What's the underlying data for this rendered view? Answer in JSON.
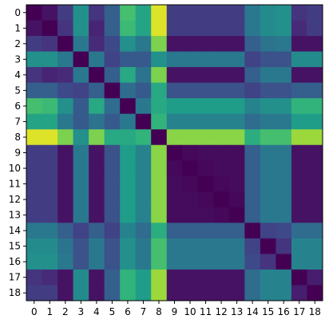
{
  "chart_data": {
    "type": "heatmap",
    "title": "",
    "xlabel": "",
    "ylabel": "",
    "colormap": "viridis",
    "x_categories": [
      "0",
      "1",
      "2",
      "3",
      "4",
      "5",
      "6",
      "7",
      "8",
      "9",
      "10",
      "11",
      "12",
      "13",
      "14",
      "15",
      "16",
      "17",
      "18"
    ],
    "y_categories": [
      "0",
      "1",
      "2",
      "3",
      "4",
      "5",
      "6",
      "7",
      "8",
      "9",
      "10",
      "11",
      "12",
      "13",
      "14",
      "15",
      "16",
      "17",
      "18"
    ],
    "value_range": [
      0,
      1
    ],
    "matrix": [
      [
        0.0,
        0.05,
        0.18,
        0.5,
        0.15,
        0.3,
        0.7,
        0.58,
        0.95,
        0.18,
        0.18,
        0.18,
        0.18,
        0.18,
        0.4,
        0.48,
        0.5,
        0.15,
        0.18
      ],
      [
        0.05,
        0.0,
        0.15,
        0.5,
        0.1,
        0.3,
        0.68,
        0.58,
        0.95,
        0.18,
        0.18,
        0.18,
        0.18,
        0.18,
        0.4,
        0.48,
        0.5,
        0.12,
        0.18
      ],
      [
        0.18,
        0.15,
        0.0,
        0.4,
        0.12,
        0.22,
        0.5,
        0.4,
        0.8,
        0.05,
        0.05,
        0.05,
        0.05,
        0.05,
        0.3,
        0.38,
        0.4,
        0.05,
        0.05
      ],
      [
        0.5,
        0.5,
        0.4,
        0.0,
        0.4,
        0.2,
        0.28,
        0.28,
        0.5,
        0.4,
        0.4,
        0.4,
        0.4,
        0.4,
        0.2,
        0.25,
        0.25,
        0.48,
        0.48
      ],
      [
        0.15,
        0.1,
        0.12,
        0.4,
        0.0,
        0.3,
        0.6,
        0.38,
        0.8,
        0.05,
        0.05,
        0.05,
        0.05,
        0.05,
        0.3,
        0.4,
        0.4,
        0.05,
        0.05
      ],
      [
        0.3,
        0.3,
        0.22,
        0.2,
        0.3,
        0.0,
        0.35,
        0.28,
        0.6,
        0.25,
        0.25,
        0.25,
        0.25,
        0.25,
        0.2,
        0.25,
        0.25,
        0.3,
        0.3
      ],
      [
        0.7,
        0.68,
        0.5,
        0.28,
        0.6,
        0.35,
        0.0,
        0.4,
        0.6,
        0.55,
        0.55,
        0.55,
        0.55,
        0.55,
        0.45,
        0.5,
        0.5,
        0.65,
        0.65
      ],
      [
        0.58,
        0.58,
        0.4,
        0.28,
        0.38,
        0.28,
        0.4,
        0.0,
        0.65,
        0.45,
        0.45,
        0.45,
        0.45,
        0.45,
        0.35,
        0.4,
        0.4,
        0.55,
        0.55
      ],
      [
        0.95,
        0.95,
        0.8,
        0.5,
        0.8,
        0.6,
        0.6,
        0.65,
        0.0,
        0.82,
        0.82,
        0.82,
        0.82,
        0.82,
        0.62,
        0.7,
        0.7,
        0.85,
        0.85
      ],
      [
        0.18,
        0.18,
        0.05,
        0.4,
        0.05,
        0.25,
        0.55,
        0.45,
        0.82,
        0.0,
        0.02,
        0.03,
        0.03,
        0.03,
        0.3,
        0.4,
        0.4,
        0.05,
        0.05
      ],
      [
        0.18,
        0.18,
        0.05,
        0.4,
        0.05,
        0.25,
        0.55,
        0.45,
        0.82,
        0.02,
        0.0,
        0.02,
        0.03,
        0.03,
        0.3,
        0.4,
        0.4,
        0.05,
        0.05
      ],
      [
        0.18,
        0.18,
        0.05,
        0.4,
        0.05,
        0.25,
        0.55,
        0.45,
        0.82,
        0.03,
        0.02,
        0.0,
        0.02,
        0.03,
        0.3,
        0.4,
        0.4,
        0.05,
        0.05
      ],
      [
        0.18,
        0.18,
        0.05,
        0.4,
        0.05,
        0.25,
        0.55,
        0.45,
        0.82,
        0.03,
        0.03,
        0.02,
        0.0,
        0.02,
        0.3,
        0.4,
        0.4,
        0.05,
        0.05
      ],
      [
        0.18,
        0.18,
        0.05,
        0.4,
        0.05,
        0.25,
        0.55,
        0.45,
        0.82,
        0.03,
        0.03,
        0.03,
        0.02,
        0.0,
        0.3,
        0.4,
        0.4,
        0.05,
        0.05
      ],
      [
        0.4,
        0.4,
        0.3,
        0.2,
        0.3,
        0.2,
        0.45,
        0.35,
        0.62,
        0.3,
        0.3,
        0.3,
        0.3,
        0.3,
        0.0,
        0.2,
        0.22,
        0.35,
        0.35
      ],
      [
        0.48,
        0.48,
        0.38,
        0.25,
        0.4,
        0.25,
        0.5,
        0.4,
        0.7,
        0.4,
        0.4,
        0.4,
        0.4,
        0.4,
        0.2,
        0.0,
        0.15,
        0.45,
        0.45
      ],
      [
        0.5,
        0.5,
        0.4,
        0.25,
        0.4,
        0.25,
        0.5,
        0.4,
        0.7,
        0.4,
        0.4,
        0.4,
        0.4,
        0.4,
        0.22,
        0.15,
        0.0,
        0.45,
        0.45
      ],
      [
        0.15,
        0.12,
        0.05,
        0.48,
        0.05,
        0.3,
        0.65,
        0.55,
        0.85,
        0.05,
        0.05,
        0.05,
        0.05,
        0.05,
        0.35,
        0.45,
        0.45,
        0.0,
        0.08
      ],
      [
        0.18,
        0.18,
        0.05,
        0.48,
        0.05,
        0.3,
        0.65,
        0.55,
        0.85,
        0.05,
        0.05,
        0.05,
        0.05,
        0.05,
        0.35,
        0.45,
        0.45,
        0.08,
        0.0
      ]
    ],
    "colors": {
      "colormap_stops": [
        "#440154",
        "#482878",
        "#3e4a89",
        "#31688e",
        "#26828e",
        "#1f9e89",
        "#35b779",
        "#6ece58",
        "#b5de2b",
        "#fde725"
      ],
      "axis": "#000000",
      "background": "#ffffff"
    }
  }
}
